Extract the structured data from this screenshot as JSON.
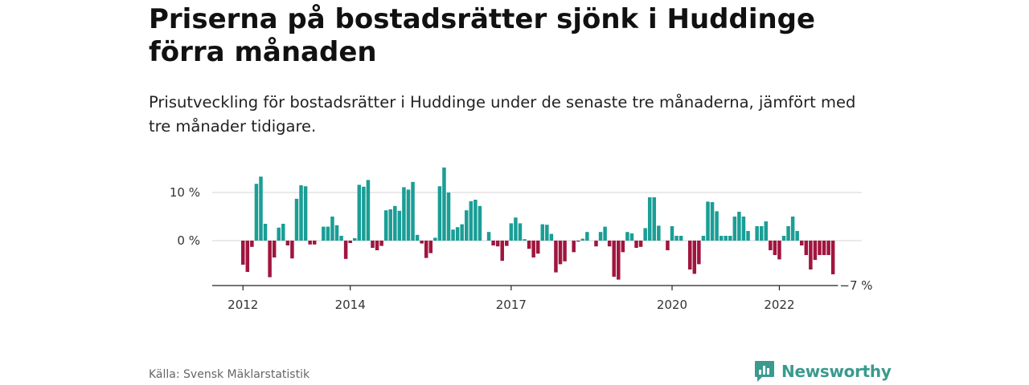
{
  "header": {
    "title": "Priserna på bostadsrätter sjönk i Huddinge förra månaden",
    "subtitle": "Prisutveckling för bostadsrätter i Huddinge under de senaste tre månaderna, jämfört med tre månader tidigare."
  },
  "footer": {
    "source": "Källa: Svensk Mäklarstatistik",
    "brand": "Newsworthy",
    "brand_color": "#3a9a8e"
  },
  "chart_data": {
    "type": "bar",
    "x_start": "2012-01",
    "x_ticks": [
      {
        "label": "2012",
        "index": 0
      },
      {
        "label": "2014",
        "index": 24
      },
      {
        "label": "2017",
        "index": 60
      },
      {
        "label": "2020",
        "index": 96
      },
      {
        "label": "2022",
        "index": 120
      }
    ],
    "y_ticks": [
      {
        "label": "0 %",
        "value": 0
      },
      {
        "label": "10 %",
        "value": 10
      }
    ],
    "ylim": [
      -9,
      15.5
    ],
    "grid": true,
    "positive_color": "#1a9e96",
    "negative_color": "#a0153e",
    "last_value_label": "−7 %",
    "values": [
      -5,
      -6.5,
      -1.3,
      11.8,
      13.3,
      3.5,
      -7.6,
      -3.5,
      2.7,
      3.5,
      -1,
      -3.7,
      8.7,
      11.5,
      11.3,
      -0.8,
      -0.8,
      0,
      2.9,
      2.9,
      5,
      3.2,
      1,
      -3.8,
      -0.5,
      0.5,
      11.6,
      11.2,
      12.6,
      -1.5,
      -2,
      -1.1,
      6.3,
      6.5,
      7.2,
      6.2,
      11.1,
      10.6,
      12.2,
      1.2,
      -0.6,
      -3.6,
      -2.6,
      0.6,
      11.3,
      15.2,
      10,
      2.3,
      2.8,
      3.4,
      6.3,
      8.2,
      8.5,
      7.2,
      0,
      1.8,
      -1,
      -1.2,
      -4.2,
      -1.1,
      3.6,
      4.8,
      3.6,
      0.3,
      -1.7,
      -3.5,
      -2.7,
      3.4,
      3.3,
      1.4,
      -6.6,
      -4.9,
      -4.3,
      0,
      -2.4,
      -0.2,
      0.4,
      1.8,
      0,
      -1.2,
      1.8,
      2.9,
      -1.2,
      -7.5,
      -8.1,
      -2.4,
      1.8,
      1.5,
      -1.5,
      -1.3,
      2.6,
      9,
      9,
      3.1,
      0,
      -2,
      3,
      1,
      1,
      0,
      -6,
      -6.9,
      -4.9,
      1,
      8.1,
      8,
      6.1,
      1,
      1,
      1,
      5,
      6,
      5,
      2,
      0,
      3,
      3,
      4,
      -2,
      -3,
      -3.9,
      1,
      3,
      5,
      2,
      -1,
      -3,
      -6,
      -4,
      -3,
      -3,
      -3,
      -7
    ]
  }
}
